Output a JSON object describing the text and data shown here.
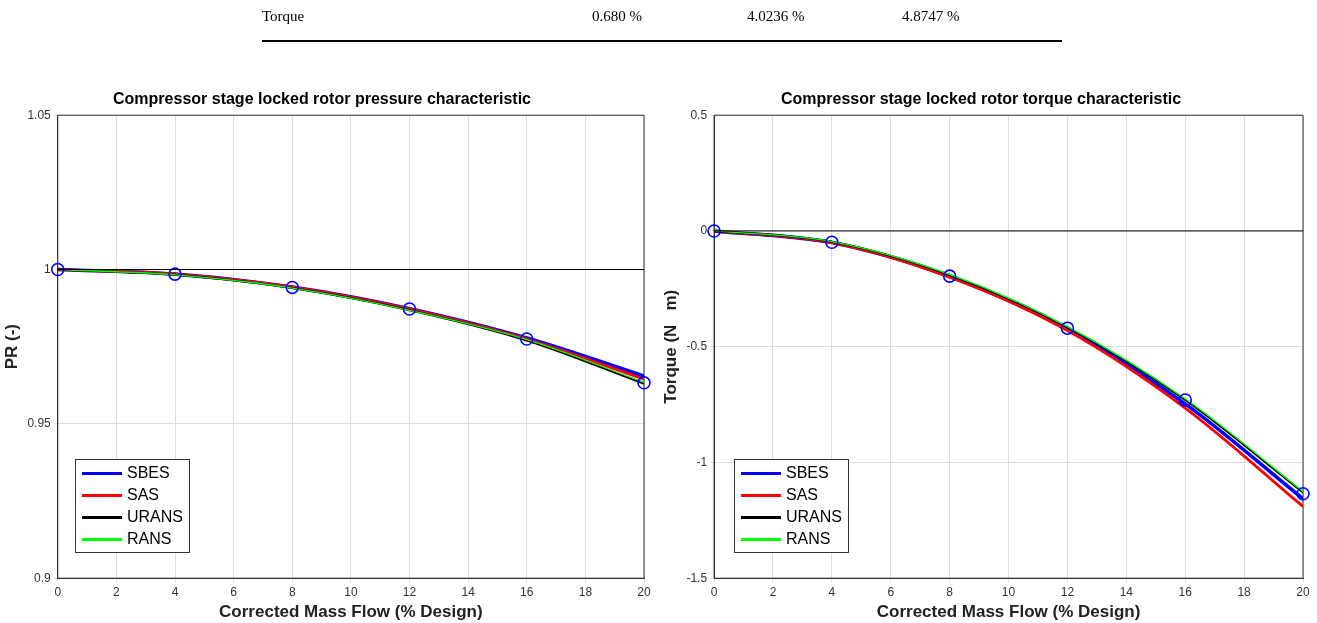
{
  "chart_data": [
    {
      "type": "other",
      "annotations": [
        "Torque",
        "0.680 %",
        "4.0236 %",
        "4.8747 %"
      ]
    },
    {
      "type": "line",
      "title": "Compressor stage locked rotor pressure characteristic",
      "xlabel": "Corrected Mass Flow (% Design)",
      "ylabel": "PR (-)",
      "x": [
        0,
        4,
        8,
        12,
        16,
        20
      ],
      "xlim": [
        0,
        20
      ],
      "xticks": [
        0,
        2,
        4,
        6,
        8,
        10,
        12,
        14,
        16,
        18,
        20
      ],
      "ylim": [
        0.9,
        1.05
      ],
      "yticks": [
        0.9,
        0.95,
        1,
        1.05
      ],
      "grid": true,
      "legend": "bottom left",
      "line_style": "solid",
      "ref_lines": [
        {
          "axis": "y",
          "value": 1,
          "color": "#000000"
        }
      ],
      "series": [
        {
          "name": "SBES",
          "color": "#0000ff",
          "marker": "none",
          "values": [
            1,
            0.9985,
            0.9943,
            0.9873,
            0.9778,
            0.9655
          ]
        },
        {
          "name": "SAS",
          "color": "#ff0000",
          "marker": "none",
          "values": [
            1,
            0.9985,
            0.9943,
            0.9872,
            0.9775,
            0.9645
          ]
        },
        {
          "name": "URANS",
          "color": "#000000",
          "marker": "none",
          "values": [
            1,
            0.9983,
            0.994,
            0.9868,
            0.977,
            0.963
          ]
        },
        {
          "name": "RANS",
          "color": "#00ff00",
          "marker": "none",
          "values": [
            1,
            0.9983,
            0.994,
            0.9868,
            0.9773,
            0.9635
          ]
        },
        {
          "type": "scatter",
          "color": "#0000ff",
          "marker": "circle",
          "values": [
            1,
            0.9985,
            0.9942,
            0.9872,
            0.9775,
            0.9633
          ]
        }
      ]
    },
    {
      "type": "line",
      "title": "Compressor stage locked rotor torque characteristic",
      "xlabel": "Corrected Mass Flow (% Design)",
      "ylabel": "Torque (N   m)",
      "x": [
        0,
        4,
        8,
        12,
        16,
        20
      ],
      "xlim": [
        0,
        20
      ],
      "xticks": [
        0,
        2,
        4,
        6,
        8,
        10,
        12,
        14,
        16,
        18,
        20
      ],
      "ylim": [
        -1.5,
        0.5
      ],
      "yticks": [
        -1.5,
        -1,
        -0.5,
        0,
        0.5
      ],
      "grid": true,
      "legend": "bottom left",
      "line_style": "solid",
      "ref_lines": [
        {
          "axis": "y",
          "value": 0,
          "color": "#000000"
        }
      ],
      "series": [
        {
          "name": "SBES",
          "color": "#0000ff",
          "marker": "none",
          "values": [
            0,
            -0.05,
            -0.197,
            -0.425,
            -0.747,
            -1.157
          ]
        },
        {
          "name": "SAS",
          "color": "#ff0000",
          "marker": "none",
          "values": [
            0,
            -0.05,
            -0.2,
            -0.43,
            -0.765,
            -1.19
          ]
        },
        {
          "name": "URANS",
          "color": "#000000",
          "marker": "none",
          "values": [
            0,
            -0.047,
            -0.19,
            -0.415,
            -0.73,
            -1.13
          ]
        },
        {
          "name": "RANS",
          "color": "#00ff00",
          "marker": "none",
          "values": [
            0,
            -0.046,
            -0.188,
            -0.413,
            -0.725,
            -1.125
          ]
        },
        {
          "type": "scatter",
          "color": "#0000ff",
          "marker": "circle",
          "values": [
            0,
            -0.049,
            -0.195,
            -0.42,
            -0.73,
            -1.135
          ]
        }
      ]
    }
  ]
}
